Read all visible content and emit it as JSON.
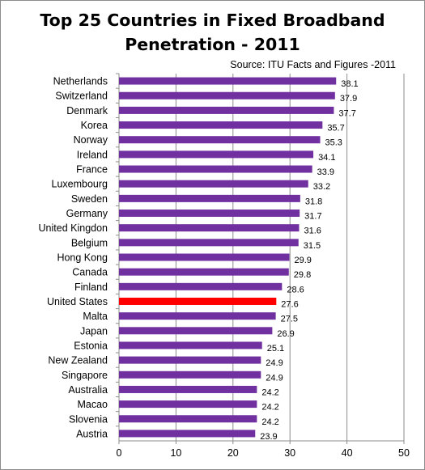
{
  "chart_data": {
    "type": "bar",
    "orientation": "horizontal",
    "title": "Top 25 Countries in Fixed Broadband\nPenetration - 2011",
    "source": "Source: ITU Facts and Figures -2011",
    "categories": [
      "Netherlands",
      "Switzerland",
      "Denmark",
      "Korea",
      "Norway",
      "Ireland",
      "France",
      "Luxembourg",
      "Sweden",
      "Germany",
      "United Kingdon",
      "Belgium",
      "Hong Kong",
      "Canada",
      "Finland",
      "United States",
      "Malta",
      "Japan",
      "Estonia",
      "New Zealand",
      "Singapore",
      "Australia",
      "Macao",
      "Slovenia",
      "Austria"
    ],
    "values": [
      38.1,
      37.9,
      37.7,
      35.7,
      35.3,
      34.1,
      33.9,
      33.2,
      31.8,
      31.7,
      31.6,
      31.5,
      29.9,
      29.8,
      28.6,
      27.6,
      27.5,
      26.9,
      25.1,
      24.9,
      24.9,
      24.2,
      24.2,
      24.2,
      23.9
    ],
    "value_labels": [
      "38.1",
      "37.9",
      "37.7",
      "35.7",
      "35.3",
      "34.1",
      "33.9",
      "33.2",
      "31.8",
      "31.7",
      "31.6",
      "31.5",
      "29.9",
      "29.8",
      "28.6",
      "27.6",
      "27.5",
      "26.9",
      "25.1",
      "24.9",
      "24.9",
      "24.2",
      "24.2",
      "24.2",
      "23.9"
    ],
    "highlight": "United States",
    "xlim": [
      0,
      50
    ],
    "xticks": [
      "0",
      "10",
      "20",
      "30",
      "40",
      "50"
    ],
    "grid": "vertical major",
    "colors": {
      "bar": "#7030a0",
      "highlight": "#ff0000",
      "grid": "#8c8c8c"
    }
  }
}
